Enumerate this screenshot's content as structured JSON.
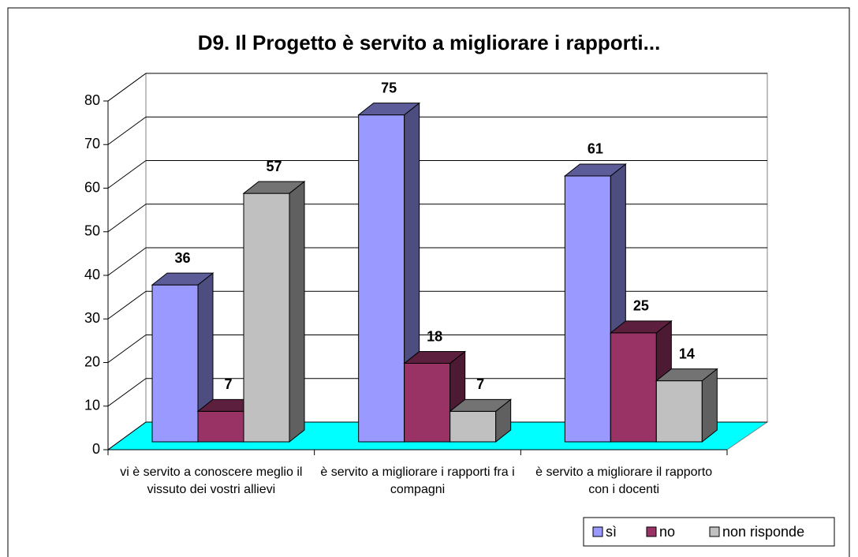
{
  "chart_data": {
    "type": "bar3d",
    "title": "D9.  Il Progetto è servito a migliorare i rapporti...",
    "categories": [
      "vi è servito a conoscere meglio il vissuto dei vostri allievi",
      "è servito a migliorare i rapporti fra i compagni",
      "è servito a migliorare il rapporto con i docenti"
    ],
    "series": [
      {
        "name": "sì",
        "color": "#9999ff",
        "values": [
          36,
          75,
          61
        ]
      },
      {
        "name": "no",
        "color": "#993366",
        "values": [
          7,
          18,
          25
        ]
      },
      {
        "name": "non risponde",
        "color": "#c0c0c0",
        "values": [
          57,
          7,
          14
        ]
      }
    ],
    "ylim": [
      0,
      80
    ],
    "yticks": [
      0,
      10,
      20,
      30,
      40,
      50,
      60,
      70,
      80
    ],
    "grid": true,
    "floor_color": "#00ffff",
    "legend": "bottom-right"
  }
}
